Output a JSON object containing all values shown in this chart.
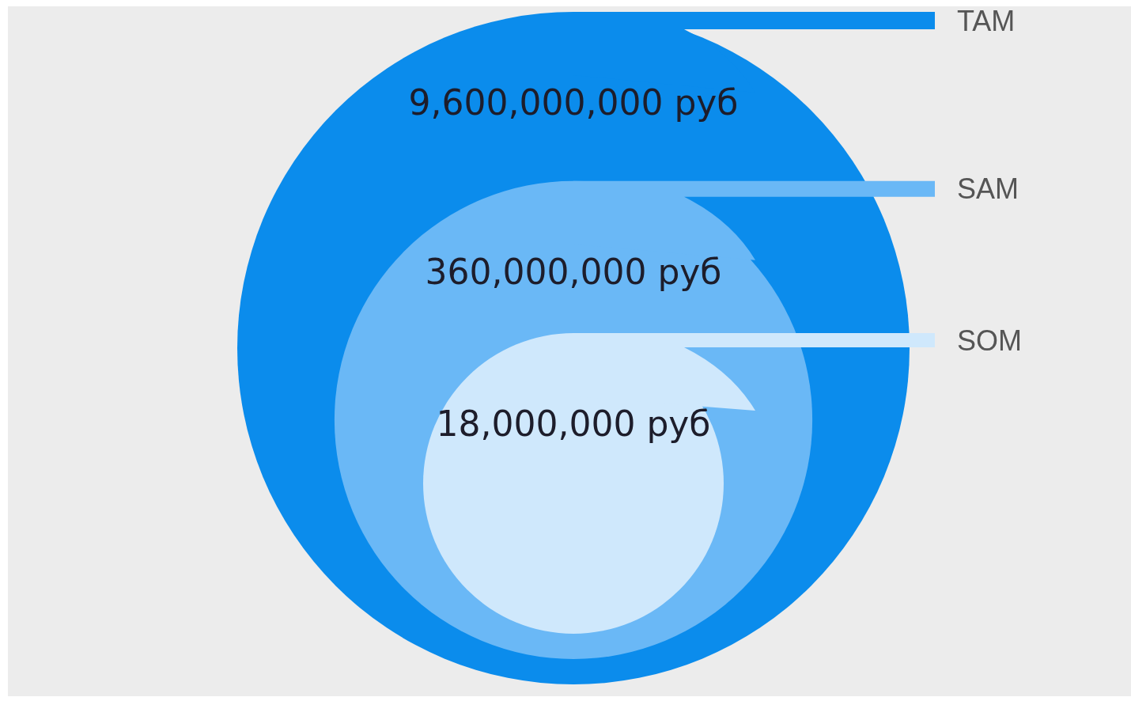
{
  "chart_data": {
    "type": "other",
    "categories": [
      "TAM",
      "SAM",
      "SOM"
    ],
    "values": [
      9600000000,
      360000000,
      18000000
    ],
    "value_labels": [
      "9,600,000,000 руб",
      "360,000,000 руб",
      "18,000,000 руб"
    ],
    "colors": [
      "#0b8cec",
      "#6ab8f6",
      "#cfe8fc"
    ]
  }
}
